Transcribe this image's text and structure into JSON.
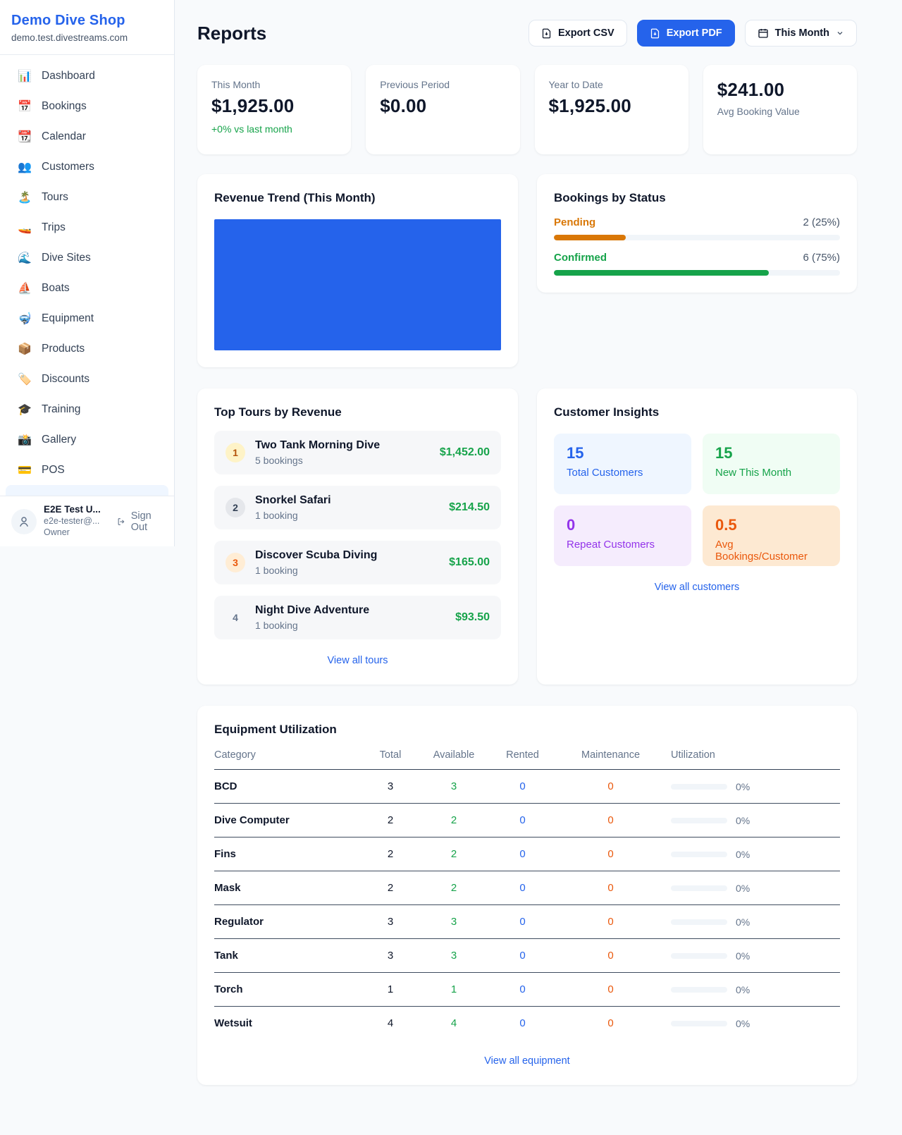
{
  "sidebar": {
    "brand": {
      "name": "Demo Dive Shop",
      "domain": "demo.test.divestreams.com"
    },
    "nav": [
      {
        "icon": "📊",
        "label": "Dashboard"
      },
      {
        "icon": "📅",
        "label": "Bookings"
      },
      {
        "icon": "📆",
        "label": "Calendar"
      },
      {
        "icon": "👥",
        "label": "Customers"
      },
      {
        "icon": "🏝️",
        "label": "Tours"
      },
      {
        "icon": "🚤",
        "label": "Trips"
      },
      {
        "icon": "🌊",
        "label": "Dive Sites"
      },
      {
        "icon": "⛵",
        "label": "Boats"
      },
      {
        "icon": "🤿",
        "label": "Equipment"
      },
      {
        "icon": "📦",
        "label": "Products"
      },
      {
        "icon": "🏷️",
        "label": "Discounts"
      },
      {
        "icon": "🎓",
        "label": "Training"
      },
      {
        "icon": "📸",
        "label": "Gallery"
      },
      {
        "icon": "💳",
        "label": "POS"
      }
    ],
    "user": {
      "name": "E2E Test U...",
      "email": "e2e-tester@...",
      "role": "Owner",
      "signout_label": "Sign Out"
    }
  },
  "header": {
    "title": "Reports",
    "export_csv_label": "Export CSV",
    "export_pdf_label": "Export PDF",
    "period_label": "This Month"
  },
  "stats": [
    {
      "label": "This Month",
      "value": "$1,925.00",
      "delta": "+0% vs last month"
    },
    {
      "label": "Previous Period",
      "value": "$0.00"
    },
    {
      "label": "Year to Date",
      "value": "$1,925.00"
    },
    {
      "label": "Avg Booking Value",
      "value": "$241.00"
    }
  ],
  "revenue_trend": {
    "title": "Revenue Trend (This Month)",
    "bar_color": "#2563eb"
  },
  "bookings_by_status": {
    "title": "Bookings by Status",
    "items": [
      {
        "label": "Pending",
        "count": "2 (25%)",
        "width": "25%",
        "color": "#d97706"
      },
      {
        "label": "Confirmed",
        "count": "6 (75%)",
        "width": "75%",
        "color": "#16a34a"
      }
    ]
  },
  "top_tours": {
    "title": "Top Tours by Revenue",
    "view_all_label": "View all tours",
    "items": [
      {
        "rank": "1",
        "name": "Two Tank Morning Dive",
        "bookings": "5 bookings",
        "revenue": "$1,452.00"
      },
      {
        "rank": "2",
        "name": "Snorkel Safari",
        "bookings": "1 booking",
        "revenue": "$214.50"
      },
      {
        "rank": "3",
        "name": "Discover Scuba Diving",
        "bookings": "1 booking",
        "revenue": "$165.00"
      },
      {
        "rank": "4",
        "name": "Night Dive Adventure",
        "bookings": "1 booking",
        "revenue": "$93.50"
      }
    ]
  },
  "customer_insights": {
    "title": "Customer Insights",
    "view_all_label": "View all customers",
    "tiles": [
      {
        "value": "15",
        "label": "Total Customers",
        "color": "#2563eb"
      },
      {
        "value": "15",
        "label": "New This Month",
        "color": "#16a34a"
      },
      {
        "value": "0",
        "label": "Repeat Customers",
        "color": "#9333ea"
      },
      {
        "value": "0.5",
        "label": "Avg Bookings/Customer",
        "color": "#ea580c"
      }
    ]
  },
  "equipment": {
    "title": "Equipment Utilization",
    "view_all_label": "View all equipment",
    "columns": [
      "Category",
      "Total",
      "Available",
      "Rented",
      "Maintenance",
      "Utilization"
    ],
    "rows": [
      {
        "category": "BCD",
        "total": "3",
        "available": "3",
        "rented": "0",
        "maintenance": "0",
        "utilization": "0%"
      },
      {
        "category": "Dive Computer",
        "total": "2",
        "available": "2",
        "rented": "0",
        "maintenance": "0",
        "utilization": "0%"
      },
      {
        "category": "Fins",
        "total": "2",
        "available": "2",
        "rented": "0",
        "maintenance": "0",
        "utilization": "0%"
      },
      {
        "category": "Mask",
        "total": "2",
        "available": "2",
        "rented": "0",
        "maintenance": "0",
        "utilization": "0%"
      },
      {
        "category": "Regulator",
        "total": "3",
        "available": "3",
        "rented": "0",
        "maintenance": "0",
        "utilization": "0%"
      },
      {
        "category": "Tank",
        "total": "3",
        "available": "3",
        "rented": "0",
        "maintenance": "0",
        "utilization": "0%"
      },
      {
        "category": "Torch",
        "total": "1",
        "available": "1",
        "rented": "0",
        "maintenance": "0",
        "utilization": "0%"
      },
      {
        "category": "Wetsuit",
        "total": "4",
        "available": "4",
        "rented": "0",
        "maintenance": "0",
        "utilization": "0%"
      }
    ]
  }
}
